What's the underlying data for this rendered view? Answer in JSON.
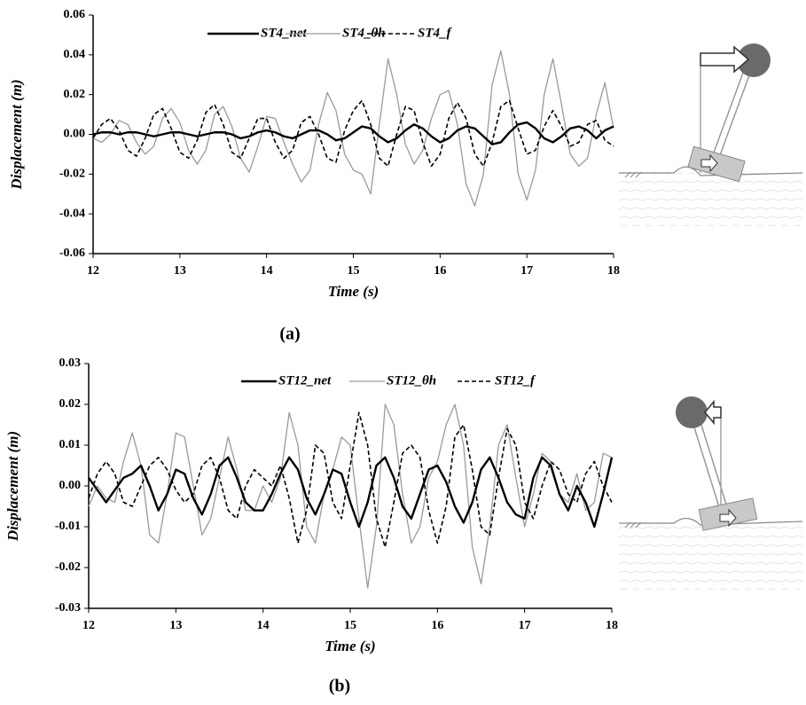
{
  "chart_data": [
    {
      "type": "line",
      "caption": "(a)",
      "xlabel": "Time (s)",
      "ylabel": "Displacement (m)",
      "x": [
        12.0,
        12.1,
        12.2,
        12.3,
        12.4,
        12.5,
        12.6,
        12.7,
        12.8,
        12.9,
        13.0,
        13.1,
        13.2,
        13.3,
        13.4,
        13.5,
        13.6,
        13.7,
        13.8,
        13.9,
        14.0,
        14.1,
        14.2,
        14.3,
        14.4,
        14.5,
        14.6,
        14.7,
        14.8,
        14.9,
        15.0,
        15.1,
        15.2,
        15.3,
        15.4,
        15.5,
        15.6,
        15.7,
        15.8,
        15.9,
        16.0,
        16.1,
        16.2,
        16.3,
        16.4,
        16.5,
        16.6,
        16.7,
        16.8,
        16.9,
        17.0,
        17.1,
        17.2,
        17.3,
        17.4,
        17.5,
        17.6,
        17.7,
        17.8,
        17.9,
        18.0
      ],
      "series": [
        {
          "name": "ST4_net",
          "color": "#000000",
          "values": [
            0.0,
            0.001,
            0.001,
            0.0,
            0.001,
            0.001,
            0.0,
            -0.001,
            0.0,
            0.001,
            0.001,
            0.0,
            -0.001,
            0.0,
            0.001,
            0.001,
            0.0,
            -0.002,
            -0.001,
            0.001,
            0.002,
            0.001,
            -0.001,
            -0.002,
            0.0,
            0.002,
            0.002,
            0.0,
            -0.003,
            -0.002,
            0.001,
            0.004,
            0.003,
            -0.001,
            -0.004,
            -0.002,
            0.002,
            0.005,
            0.003,
            -0.001,
            -0.004,
            -0.002,
            0.002,
            0.004,
            0.003,
            -0.001,
            -0.005,
            -0.004,
            0.001,
            0.005,
            0.006,
            0.003,
            -0.002,
            -0.004,
            -0.001,
            0.003,
            0.004,
            0.002,
            -0.002,
            0.002,
            0.004
          ]
        },
        {
          "name": "ST4_θh",
          "color": "#9a9a9a",
          "values": [
            -0.002,
            -0.004,
            0.0,
            0.007,
            0.005,
            -0.004,
            -0.01,
            -0.006,
            0.008,
            0.013,
            0.006,
            -0.008,
            -0.015,
            -0.008,
            0.01,
            0.014,
            0.004,
            -0.012,
            -0.019,
            -0.006,
            0.009,
            0.008,
            -0.004,
            -0.015,
            -0.024,
            -0.018,
            0.005,
            0.021,
            0.012,
            -0.01,
            -0.018,
            -0.02,
            -0.03,
            0.005,
            0.038,
            0.02,
            -0.005,
            -0.015,
            -0.008,
            0.008,
            0.02,
            0.022,
            0.005,
            -0.025,
            -0.036,
            -0.02,
            0.025,
            0.042,
            0.02,
            -0.02,
            -0.033,
            -0.018,
            0.02,
            0.038,
            0.015,
            -0.01,
            -0.016,
            -0.012,
            0.01,
            0.026,
            0.003
          ]
        },
        {
          "name": "ST4_f",
          "color": "#000000",
          "dash": true,
          "values": [
            -0.002,
            0.005,
            0.008,
            0.002,
            -0.008,
            -0.011,
            -0.002,
            0.01,
            0.013,
            0.003,
            -0.009,
            -0.012,
            -0.003,
            0.011,
            0.015,
            0.005,
            -0.009,
            -0.012,
            -0.002,
            0.008,
            0.008,
            -0.004,
            -0.012,
            -0.008,
            0.006,
            0.009,
            0.0,
            -0.012,
            -0.014,
            0.002,
            0.012,
            0.017,
            0.005,
            -0.012,
            -0.016,
            0.0,
            0.014,
            0.012,
            -0.004,
            -0.016,
            -0.01,
            0.008,
            0.016,
            0.008,
            -0.01,
            -0.016,
            -0.004,
            0.014,
            0.017,
            0.003,
            -0.01,
            -0.008,
            0.004,
            0.012,
            0.004,
            -0.006,
            -0.004,
            0.005,
            0.007,
            -0.003,
            -0.006
          ]
        }
      ],
      "xlim": [
        12,
        18
      ],
      "xticks": [
        12,
        13,
        14,
        15,
        16,
        17,
        18
      ],
      "ylim": [
        -0.06,
        0.06
      ],
      "yticks": [
        -0.06,
        -0.04,
        -0.02,
        {
          "value": 0,
          "label": "0.00"
        },
        0.02,
        0.04,
        0.06
      ]
    },
    {
      "type": "line",
      "caption": "(b)",
      "xlabel": "Time (s)",
      "ylabel": "Displacement (m)",
      "x": [
        12.0,
        12.1,
        12.2,
        12.3,
        12.4,
        12.5,
        12.6,
        12.7,
        12.8,
        12.9,
        13.0,
        13.1,
        13.2,
        13.3,
        13.4,
        13.5,
        13.6,
        13.7,
        13.8,
        13.9,
        14.0,
        14.1,
        14.2,
        14.3,
        14.4,
        14.5,
        14.6,
        14.7,
        14.8,
        14.9,
        15.0,
        15.1,
        15.2,
        15.3,
        15.4,
        15.5,
        15.6,
        15.7,
        15.8,
        15.9,
        16.0,
        16.1,
        16.2,
        16.3,
        16.4,
        16.5,
        16.6,
        16.7,
        16.8,
        16.9,
        17.0,
        17.1,
        17.2,
        17.3,
        17.4,
        17.5,
        17.6,
        17.7,
        17.8,
        17.9,
        18.0
      ],
      "series": [
        {
          "name": "ST12_net",
          "color": "#000000",
          "values": [
            0.002,
            -0.001,
            -0.004,
            -0.001,
            0.002,
            0.003,
            0.005,
            0.0,
            -0.006,
            -0.002,
            0.004,
            0.003,
            -0.003,
            -0.007,
            -0.002,
            0.005,
            0.007,
            0.002,
            -0.004,
            -0.006,
            -0.006,
            -0.002,
            0.003,
            0.007,
            0.004,
            -0.003,
            -0.007,
            -0.002,
            0.004,
            0.003,
            -0.004,
            -0.01,
            -0.004,
            0.005,
            0.007,
            0.002,
            -0.005,
            -0.008,
            -0.002,
            0.004,
            0.005,
            0.001,
            -0.005,
            -0.009,
            -0.004,
            0.004,
            0.007,
            0.002,
            -0.004,
            -0.007,
            -0.008,
            0.002,
            0.007,
            0.005,
            -0.002,
            -0.006,
            0.0,
            -0.004,
            -0.01,
            -0.002,
            0.007
          ]
        },
        {
          "name": "ST12_θh",
          "color": "#9a9a9a",
          "values": [
            -0.005,
            0.0,
            -0.003,
            -0.004,
            0.006,
            0.013,
            0.005,
            -0.012,
            -0.014,
            -0.002,
            0.013,
            0.012,
            0.0,
            -0.012,
            -0.008,
            0.002,
            0.012,
            0.004,
            -0.006,
            -0.006,
            0.0,
            -0.004,
            0.002,
            0.018,
            0.01,
            -0.01,
            -0.014,
            -0.002,
            0.004,
            0.012,
            0.01,
            -0.008,
            -0.025,
            -0.01,
            0.02,
            0.015,
            -0.002,
            -0.014,
            -0.01,
            0.002,
            0.006,
            0.015,
            0.02,
            0.01,
            -0.015,
            -0.024,
            -0.01,
            0.01,
            0.015,
            0.002,
            -0.01,
            -0.002,
            0.008,
            0.006,
            -0.002,
            -0.004,
            0.003,
            -0.006,
            -0.004,
            0.008,
            0.007
          ]
        },
        {
          "name": "ST12_f",
          "color": "#000000",
          "dash": true,
          "values": [
            -0.003,
            0.003,
            0.006,
            0.003,
            -0.004,
            -0.005,
            0.0,
            0.005,
            0.007,
            0.004,
            -0.001,
            -0.004,
            -0.002,
            0.005,
            0.007,
            0.002,
            -0.006,
            -0.008,
            0.0,
            0.004,
            0.002,
            0.0,
            0.005,
            -0.003,
            -0.014,
            -0.006,
            0.01,
            0.008,
            -0.004,
            -0.008,
            0.005,
            0.018,
            0.01,
            -0.008,
            -0.015,
            -0.004,
            0.008,
            0.01,
            0.007,
            -0.006,
            -0.014,
            -0.005,
            0.012,
            0.015,
            0.004,
            -0.01,
            -0.012,
            0.002,
            0.014,
            0.01,
            -0.004,
            -0.008,
            0.0,
            0.006,
            0.004,
            -0.002,
            -0.004,
            0.003,
            0.006,
            0.0,
            -0.004
          ]
        }
      ],
      "xlim": [
        12,
        18
      ],
      "xticks": [
        12,
        13,
        14,
        15,
        16,
        17,
        18
      ],
      "ylim": [
        -0.03,
        0.03
      ],
      "yticks": [
        -0.03,
        -0.02,
        -0.01,
        {
          "value": 0,
          "label": "0.00"
        },
        0.01,
        0.02,
        0.03
      ]
    }
  ]
}
